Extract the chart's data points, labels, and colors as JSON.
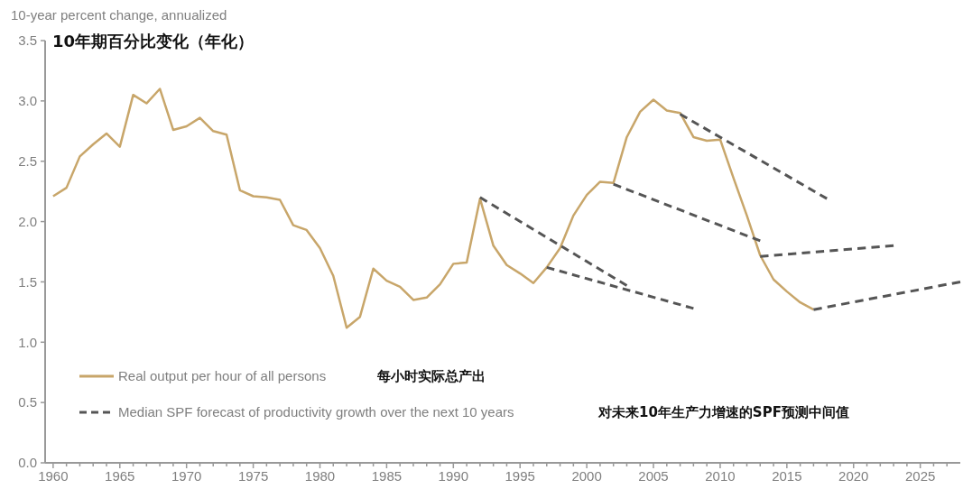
{
  "chart_data": {
    "type": "line",
    "title": "10年期百分比变化（年化）",
    "ylabel": "10-year percent change, annualized",
    "xlim": [
      1959.4,
      2028
    ],
    "ylim": [
      0,
      3.5
    ],
    "yticks": [
      {
        "value": 0,
        "label": "0.0"
      },
      {
        "value": 0.5,
        "label": "0.5"
      },
      {
        "value": 1,
        "label": "1.0"
      },
      {
        "value": 1.5,
        "label": "1.5"
      },
      {
        "value": 2,
        "label": "2.0"
      },
      {
        "value": 2.5,
        "label": "2.5"
      },
      {
        "value": 3,
        "label": "3.0"
      },
      {
        "value": 3.5,
        "label": "3.5"
      }
    ],
    "xticks": [
      1960,
      {
        "value": 1961,
        "label": null
      },
      {
        "value": 1962,
        "label": null
      },
      {
        "value": 1963,
        "label": null
      },
      {
        "value": 1964,
        "label": null
      },
      1965,
      {
        "value": 1966,
        "label": null
      },
      {
        "value": 1967,
        "label": null
      },
      {
        "value": 1968,
        "label": null
      },
      {
        "value": 1969,
        "label": null
      },
      1970,
      {
        "value": 1971,
        "label": null
      },
      {
        "value": 1972,
        "label": null
      },
      {
        "value": 1973,
        "label": null
      },
      {
        "value": 1974,
        "label": null
      },
      1975,
      {
        "value": 1976,
        "label": null
      },
      {
        "value": 1977,
        "label": null
      },
      {
        "value": 1978,
        "label": null
      },
      {
        "value": 1979,
        "label": null
      },
      1980,
      {
        "value": 1981,
        "label": null
      },
      {
        "value": 1982,
        "label": null
      },
      {
        "value": 1983,
        "label": null
      },
      {
        "value": 1984,
        "label": null
      },
      1985,
      {
        "value": 1986,
        "label": null
      },
      {
        "value": 1987,
        "label": null
      },
      {
        "value": 1988,
        "label": null
      },
      {
        "value": 1989,
        "label": null
      },
      1990,
      {
        "value": 1991,
        "label": null
      },
      {
        "value": 1992,
        "label": null
      },
      {
        "value": 1993,
        "label": null
      },
      {
        "value": 1994,
        "label": null
      },
      1995,
      {
        "value": 1996,
        "label": null
      },
      {
        "value": 1997,
        "label": null
      },
      {
        "value": 1998,
        "label": null
      },
      {
        "value": 1999,
        "label": null
      },
      2000,
      {
        "value": 2001,
        "label": null
      },
      {
        "value": 2002,
        "label": null
      },
      {
        "value": 2003,
        "label": null
      },
      {
        "value": 2004,
        "label": null
      },
      2005,
      {
        "value": 2006,
        "label": null
      },
      {
        "value": 2007,
        "label": null
      },
      {
        "value": 2008,
        "label": null
      },
      {
        "value": 2009,
        "label": null
      },
      2010,
      {
        "value": 2011,
        "label": null
      },
      {
        "value": 2012,
        "label": null
      },
      {
        "value": 2013,
        "label": null
      },
      {
        "value": 2014,
        "label": null
      },
      2015,
      {
        "value": 2016,
        "label": null
      },
      {
        "value": 2017,
        "label": null
      },
      {
        "value": 2018,
        "label": null
      },
      {
        "value": 2019,
        "label": null
      },
      2020,
      {
        "value": 2021,
        "label": null
      },
      {
        "value": 2022,
        "label": null
      },
      {
        "value": 2023,
        "label": null
      },
      {
        "value": 2024,
        "label": null
      },
      2025,
      {
        "value": 2026,
        "label": null
      },
      {
        "value": 2027,
        "label": null
      }
    ],
    "legend": "bottom left",
    "grid": false,
    "marker": "none",
    "annotations": [
      "每小时实际总产出",
      "对未来10年生产力增速的SPF预测中间值"
    ],
    "series": [
      {
        "name": "Real output per hour of all persons",
        "color": "#c8a66a",
        "line_style": "solid",
        "x": [
          1960,
          1961,
          1962,
          1963,
          1964,
          1965,
          1966,
          1967,
          1968,
          1969,
          1970,
          1971,
          1972,
          1973,
          1974,
          1975,
          1976,
          1977,
          1978,
          1979,
          1980,
          1981,
          1982,
          1983,
          1984,
          1985,
          1986,
          1987,
          1988,
          1989,
          1990,
          1991,
          1992,
          1993,
          1994,
          1995,
          1996,
          1997,
          1998,
          1999,
          2000,
          2001,
          2002,
          2003,
          2004,
          2005,
          2006,
          2007,
          2008,
          2009,
          2010,
          2011,
          2012,
          2013,
          2014,
          2015,
          2016,
          2017
        ],
        "values": [
          2.21,
          2.28,
          2.54,
          2.64,
          2.73,
          2.62,
          3.05,
          2.98,
          3.1,
          2.76,
          2.79,
          2.86,
          2.75,
          2.72,
          2.26,
          2.21,
          2.2,
          2.18,
          1.97,
          1.93,
          1.78,
          1.55,
          1.12,
          1.21,
          1.61,
          1.51,
          1.46,
          1.35,
          1.37,
          1.48,
          1.65,
          1.66,
          2.19,
          1.8,
          1.64,
          1.57,
          1.49,
          1.62,
          1.78,
          2.05,
          2.22,
          2.33,
          2.32,
          2.7,
          2.91,
          3.01,
          2.92,
          2.9,
          2.7,
          2.67,
          2.68,
          2.36,
          2.05,
          1.72,
          1.52,
          1.42,
          1.33,
          1.27
        ]
      },
      {
        "name": "Median SPF forecast of productivity growth over the next 10 years",
        "color": "#555555",
        "line_style": "dashed",
        "x": [
          1992,
          2003
        ],
        "values": [
          2.2,
          1.47
        ]
      },
      {
        "color": "#555555",
        "line_style": "dashed",
        "x": [
          1997,
          2008
        ],
        "values": [
          1.62,
          1.28
        ]
      },
      {
        "color": "#555555",
        "line_style": "dashed",
        "x": [
          2002,
          2013
        ],
        "values": [
          2.31,
          1.84
        ]
      },
      {
        "color": "#555555",
        "line_style": "dashed",
        "x": [
          2007,
          2018
        ],
        "values": [
          2.89,
          2.19
        ]
      },
      {
        "color": "#555555",
        "line_style": "dashed",
        "x": [
          2013,
          2023
        ],
        "values": [
          1.71,
          1.8
        ]
      },
      {
        "color": "#555555",
        "line_style": "dashed",
        "x": [
          2017,
          2028
        ],
        "values": [
          1.27,
          1.5
        ]
      }
    ]
  }
}
